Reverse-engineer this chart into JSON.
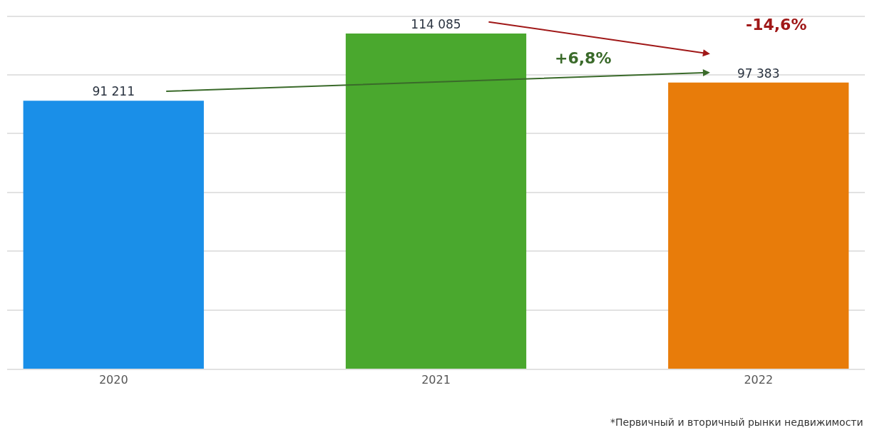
{
  "chart_data": {
    "type": "bar",
    "categories": [
      "2020",
      "2021",
      "2022"
    ],
    "values": [
      91211,
      114085,
      97383
    ],
    "colors": [
      "#1a8fe8",
      "#4aa82e",
      "#e87c0a"
    ],
    "value_labels": [
      "91 211",
      "114 085",
      "97 383"
    ],
    "tick_labels": "x",
    "grid": "y",
    "legend": false,
    "annotations": [
      "+6,8%",
      "-14,6%",
      "*Первичный и вторичный рынки недвижимости"
    ]
  }
}
